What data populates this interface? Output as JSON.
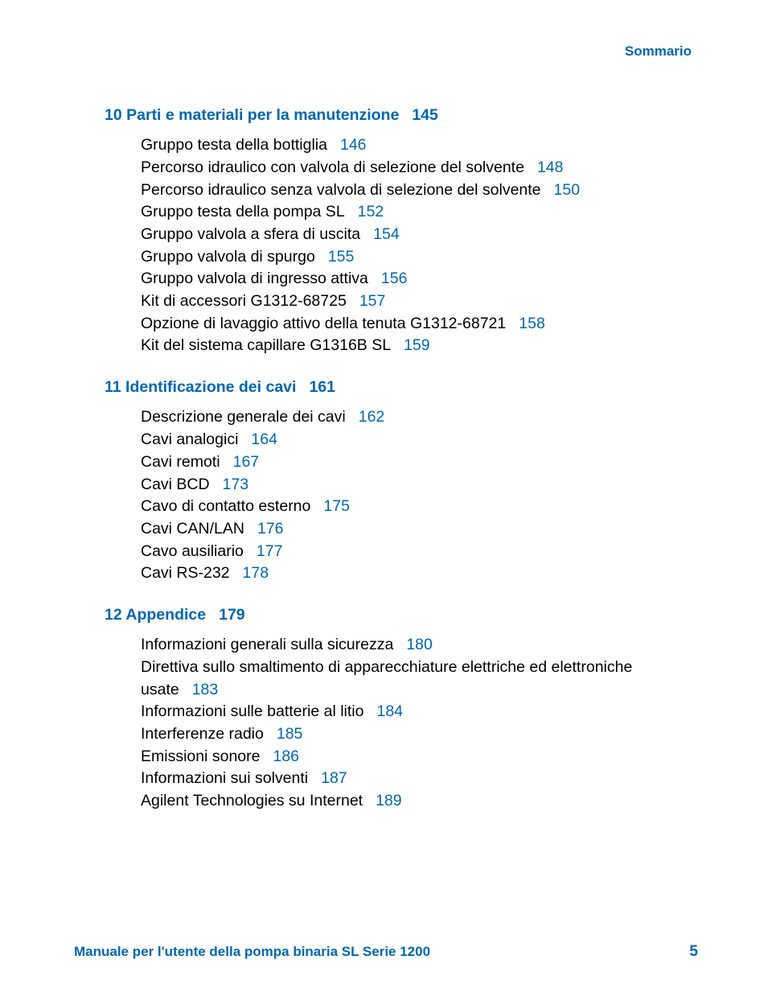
{
  "header": "Sommario",
  "sections": [
    {
      "num": "10",
      "title": "Parti e materiali per la manutenzione",
      "page": "145",
      "items": [
        {
          "text": "Gruppo testa della bottiglia",
          "page": "146"
        },
        {
          "text": "Percorso idraulico con valvola di selezione del solvente",
          "page": "148"
        },
        {
          "text": "Percorso idraulico senza valvola di selezione del solvente",
          "page": "150"
        },
        {
          "text": "Gruppo testa della pompa SL",
          "page": "152"
        },
        {
          "text": "Gruppo valvola a sfera di uscita",
          "page": "154"
        },
        {
          "text": "Gruppo valvola di spurgo",
          "page": "155"
        },
        {
          "text": "Gruppo valvola di ingresso attiva",
          "page": "156"
        },
        {
          "text": "Kit di accessori G1312-68725",
          "page": "157"
        },
        {
          "text": "Opzione di lavaggio attivo della tenuta G1312-68721",
          "page": "158"
        },
        {
          "text": "Kit del sistema capillare G1316B SL",
          "page": "159"
        }
      ]
    },
    {
      "num": "11",
      "title": "Identificazione dei cavi",
      "page": "161",
      "items": [
        {
          "text": "Descrizione generale dei cavi",
          "page": "162"
        },
        {
          "text": "Cavi analogici",
          "page": "164"
        },
        {
          "text": "Cavi remoti",
          "page": "167"
        },
        {
          "text": "Cavi BCD",
          "page": "173"
        },
        {
          "text": "Cavo di contatto esterno",
          "page": "175"
        },
        {
          "text": "Cavi CAN/LAN",
          "page": "176"
        },
        {
          "text": "Cavo ausiliario",
          "page": "177"
        },
        {
          "text": "Cavi RS-232",
          "page": "178"
        }
      ]
    },
    {
      "num": "12",
      "title": "Appendice",
      "page": "179",
      "items": [
        {
          "text": "Informazioni generali sulla sicurezza",
          "page": "180"
        },
        {
          "text": "Direttiva sullo smaltimento di apparecchiature elettriche ed elettroniche usate",
          "page": "183"
        },
        {
          "text": "Informazioni sulle batterie al litio",
          "page": "184"
        },
        {
          "text": "Interferenze radio",
          "page": "185"
        },
        {
          "text": "Emissioni sonore",
          "page": "186"
        },
        {
          "text": "Informazioni sui solventi",
          "page": "187"
        },
        {
          "text": "Agilent Technologies su Internet",
          "page": "189"
        }
      ]
    }
  ],
  "footer": {
    "text": "Manuale per l'utente della pompa binaria SL Serie 1200",
    "page": "5"
  }
}
